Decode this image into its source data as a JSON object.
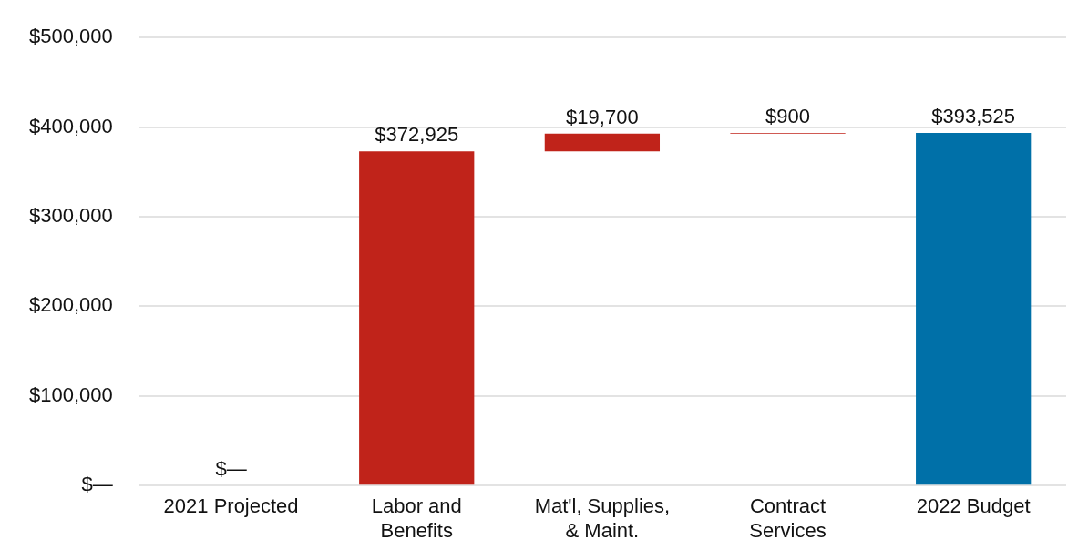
{
  "chart_data": {
    "type": "bar",
    "categories": [
      "2021 Projected",
      "Labor and Benefits",
      "Mat'l, Supplies, & Maint.",
      "Contract Services",
      "2022 Budget"
    ],
    "values": [
      0,
      372925,
      19700,
      900,
      393525
    ],
    "base": [
      null,
      null,
      372925,
      392625,
      null
    ],
    "colors": [
      "#c0231a",
      "#c0231a",
      "#c0231a",
      "#c0231a",
      "#0070a8"
    ],
    "value_labels": [
      "$—",
      "$372,925",
      "$19,700",
      "$900",
      "$393,525"
    ],
    "ylim": [
      0,
      500000
    ],
    "yticks": [
      {
        "value": 0,
        "label": "$—"
      },
      {
        "value": 100000,
        "label": "$100,000"
      },
      {
        "value": 200000,
        "label": "$200,000"
      },
      {
        "value": 300000,
        "label": "$300,000"
      },
      {
        "value": 400000,
        "label": "$400,000"
      },
      {
        "value": 500000,
        "label": "$500,000"
      }
    ],
    "grid": "y",
    "legend": false
  }
}
